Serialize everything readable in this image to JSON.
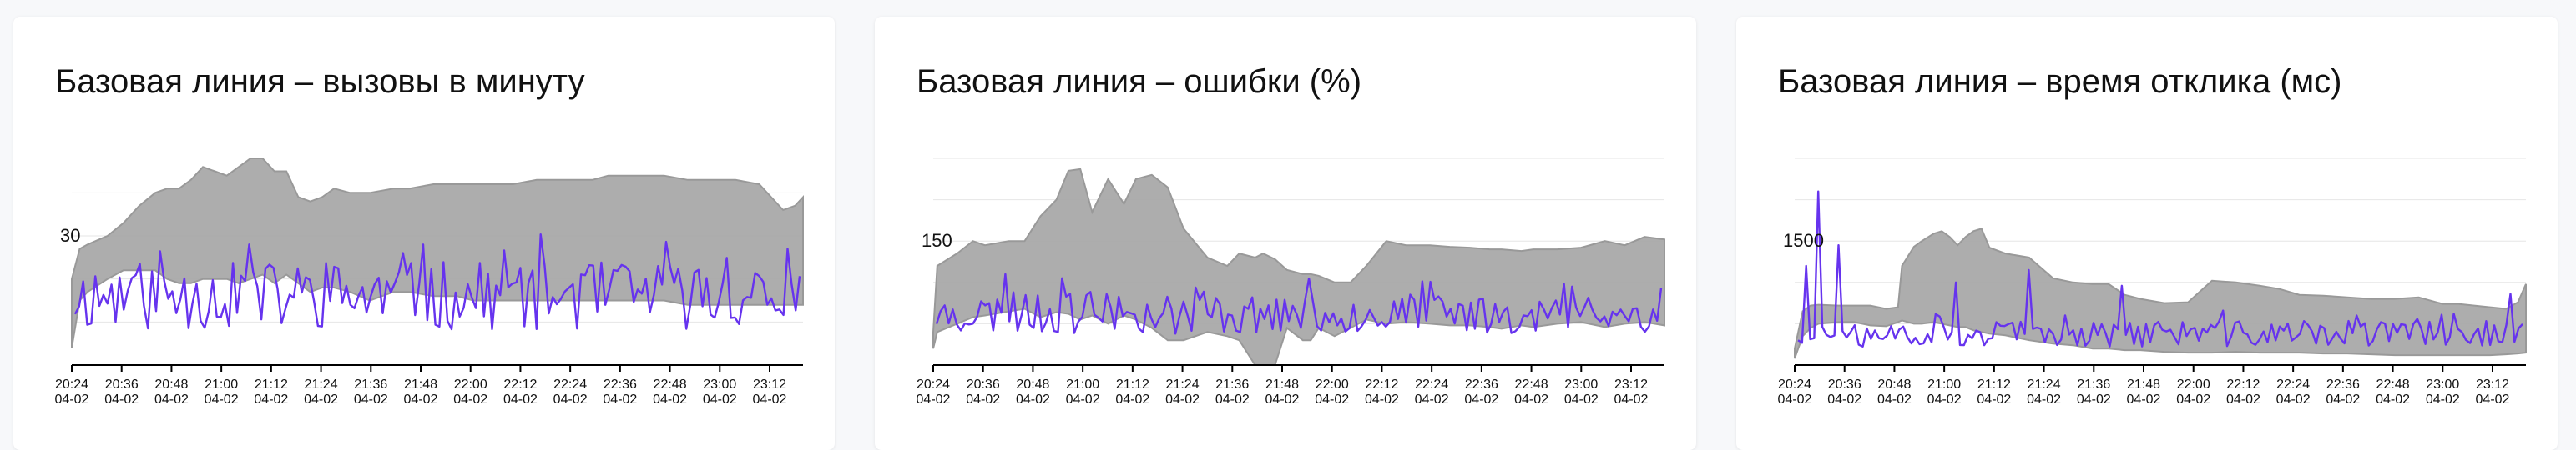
{
  "colors": {
    "band": "#a9a9a9",
    "band_edge": "#999999",
    "line": "#6633ee",
    "axis": "#000000",
    "grid": "#e6e6e6"
  },
  "x_tick_labels": [
    [
      "20:24",
      "04-02"
    ],
    [
      "20:36",
      "04-02"
    ],
    [
      "20:48",
      "04-02"
    ],
    [
      "21:00",
      "04-02"
    ],
    [
      "21:12",
      "04-02"
    ],
    [
      "21:24",
      "04-02"
    ],
    [
      "21:36",
      "04-02"
    ],
    [
      "21:48",
      "04-02"
    ],
    [
      "22:00",
      "04-02"
    ],
    [
      "22:12",
      "04-02"
    ],
    [
      "22:24",
      "04-02"
    ],
    [
      "22:36",
      "04-02"
    ],
    [
      "22:48",
      "04-02"
    ],
    [
      "23:00",
      "04-02"
    ],
    [
      "23:12",
      "04-02"
    ]
  ],
  "chart_data": [
    {
      "type": "area",
      "title": "Базовая линия – вызовы в минуту",
      "y_tick": 30,
      "ylim": [
        0,
        48
      ],
      "x_range": [
        "20:21",
        "23:25"
      ],
      "grid": true,
      "series": [
        {
          "role": "band",
          "x": [
            "20:21",
            "20:23",
            "20:25",
            "20:30",
            "20:34",
            "20:38",
            "20:42",
            "20:45",
            "20:48",
            "20:51",
            "20:54",
            "20:57",
            "21:00",
            "21:03",
            "21:06",
            "21:09",
            "21:12",
            "21:15",
            "21:18",
            "21:21",
            "21:24",
            "21:27",
            "21:31",
            "21:36",
            "21:42",
            "21:46",
            "21:52",
            "21:58",
            "22:02",
            "22:06",
            "22:12",
            "22:18",
            "22:22",
            "22:27",
            "22:32",
            "22:36",
            "22:40",
            "22:45",
            "22:50",
            "22:56",
            "23:02",
            "23:08",
            "23:14",
            "23:20",
            "23:23",
            "23:25"
          ],
          "upper": [
            20,
            27,
            28,
            30,
            33,
            37,
            40,
            41,
            41,
            43,
            46,
            45,
            44,
            46,
            48,
            48,
            45,
            45,
            39,
            38,
            39,
            41,
            40,
            40,
            41,
            41,
            42,
            42,
            42,
            42,
            42,
            43,
            43,
            43,
            43,
            44,
            44,
            44,
            44,
            43,
            43,
            43,
            42,
            36,
            37,
            39
          ],
          "lower": [
            4,
            15,
            17,
            20,
            22,
            22,
            22,
            20,
            19,
            19,
            20,
            20,
            20,
            19,
            20,
            21,
            19,
            21,
            19,
            17,
            18,
            18,
            17,
            15,
            17,
            17,
            16,
            16,
            15,
            15,
            15,
            15,
            15,
            15,
            15,
            15,
            15,
            15,
            15,
            14,
            14,
            14,
            14,
            14,
            14,
            14
          ]
        },
        {
          "role": "line",
          "seed": 11,
          "base": 16,
          "amp": 8,
          "spikes": [
            [
              43,
              28
            ],
            [
              86,
              28
            ],
            [
              144,
              23
            ],
            [
              176,
              27
            ]
          ]
        }
      ]
    },
    {
      "type": "area",
      "title": "Базовая линия – ошибки (%)",
      "y_tick": 150,
      "ylim": [
        0,
        250
      ],
      "x_range": [
        "20:21",
        "23:25"
      ],
      "grid": true,
      "series": [
        {
          "role": "band",
          "x": [
            "20:21",
            "20:22",
            "20:27",
            "20:31",
            "20:34",
            "20:40",
            "20:44",
            "20:48",
            "20:52",
            "20:55",
            "20:58",
            "21:01",
            "21:05",
            "21:09",
            "21:12",
            "21:16",
            "21:20",
            "21:24",
            "21:30",
            "21:35",
            "21:38",
            "21:42",
            "21:44",
            "21:47",
            "21:50",
            "21:54",
            "21:56",
            "21:58",
            "22:02",
            "22:06",
            "22:10",
            "22:15",
            "22:20",
            "22:26",
            "22:31",
            "22:36",
            "22:41",
            "22:44",
            "22:49",
            "22:52",
            "22:58",
            "23:04",
            "23:10",
            "23:15",
            "23:20",
            "23:25"
          ],
          "upper": [
            40,
            120,
            135,
            150,
            145,
            150,
            150,
            180,
            200,
            235,
            237,
            185,
            225,
            195,
            225,
            230,
            215,
            165,
            130,
            120,
            135,
            130,
            135,
            128,
            115,
            110,
            110,
            108,
            100,
            100,
            120,
            150,
            145,
            145,
            143,
            142,
            140,
            140,
            138,
            140,
            140,
            142,
            150,
            145,
            155,
            152
          ],
          "lower": [
            20,
            40,
            50,
            58,
            60,
            65,
            68,
            58,
            64,
            62,
            55,
            60,
            50,
            60,
            55,
            45,
            30,
            30,
            40,
            35,
            30,
            0,
            0,
            0,
            45,
            30,
            30,
            45,
            35,
            45,
            55,
            50,
            52,
            50,
            48,
            48,
            46,
            44,
            48,
            46,
            50,
            52,
            46,
            50,
            52,
            48
          ]
        },
        {
          "role": "line",
          "seed": 23,
          "base": 62,
          "amp": 24,
          "spikes": [
            [
              17,
              110
            ],
            [
              31,
              105
            ],
            [
              157,
              95
            ]
          ]
        }
      ]
    },
    {
      "type": "area",
      "title": "Базовая линия – время отклика (мс)",
      "y_tick": 1500,
      "ylim": [
        0,
        2500
      ],
      "x_range": [
        "20:21",
        "23:25"
      ],
      "grid": true,
      "series": [
        {
          "role": "band",
          "x": [
            "20:21",
            "20:23",
            "20:25",
            "20:27",
            "20:32",
            "20:36",
            "20:40",
            "20:44",
            "20:47",
            "20:48",
            "20:51",
            "20:53",
            "20:56",
            "20:58",
            "21:00",
            "21:02",
            "21:04",
            "21:06",
            "21:08",
            "21:10",
            "21:14",
            "21:20",
            "21:26",
            "21:31",
            "21:36",
            "21:40",
            "21:44",
            "21:48",
            "21:54",
            "22:00",
            "22:06",
            "22:12",
            "22:18",
            "22:23",
            "22:28",
            "22:34",
            "22:40",
            "22:46",
            "22:52",
            "22:58",
            "23:04",
            "23:08",
            "23:12",
            "23:16",
            "23:20",
            "23:23",
            "23:25"
          ],
          "upper": [
            200,
            650,
            720,
            730,
            720,
            720,
            720,
            680,
            700,
            1200,
            1430,
            1500,
            1590,
            1620,
            1550,
            1450,
            1550,
            1620,
            1650,
            1420,
            1350,
            1300,
            1050,
            1000,
            980,
            980,
            850,
            800,
            750,
            760,
            1020,
            1000,
            960,
            920,
            850,
            840,
            820,
            800,
            800,
            820,
            740,
            740,
            720,
            700,
            680,
            760,
            980
          ],
          "lower": [
            80,
            350,
            450,
            500,
            520,
            520,
            480,
            470,
            520,
            540,
            500,
            500,
            520,
            500,
            480,
            460,
            460,
            420,
            400,
            380,
            360,
            300,
            260,
            240,
            200,
            200,
            180,
            180,
            160,
            150,
            150,
            160,
            150,
            150,
            150,
            140,
            140,
            130,
            120,
            120,
            120,
            120,
            120,
            120,
            130,
            140,
            150
          ]
        },
        {
          "role": "line",
          "seed": 37,
          "base": 380,
          "amp": 160,
          "spikes": [
            [
              2,
              1200
            ],
            [
              5,
              2100
            ],
            [
              10,
              1450
            ],
            [
              39,
              1000
            ],
            [
              57,
              1150
            ],
            [
              80,
              960
            ],
            [
              138,
              600
            ],
            [
              162,
              620
            ],
            [
              176,
              860
            ]
          ]
        }
      ]
    }
  ]
}
